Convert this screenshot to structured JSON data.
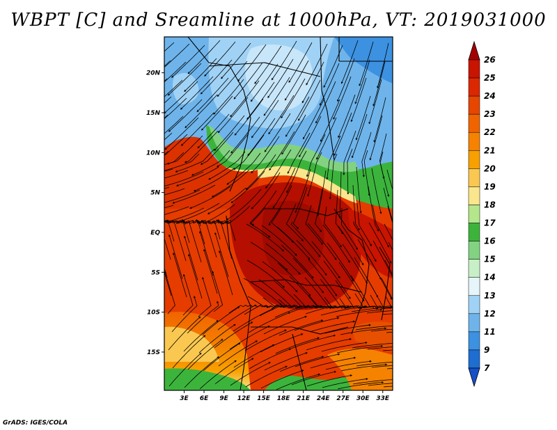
{
  "title": "WBPT [C] and Sreamline at 1000hPa, VT: 2019031000",
  "credit": "GrADS: IGES/COLA",
  "map": {
    "lat_labels": [
      "20N",
      "15N",
      "10N",
      "5N",
      "EQ",
      "5S",
      "10S",
      "15S"
    ],
    "lat_values": [
      20,
      15,
      10,
      5,
      0,
      -5,
      -10,
      -15
    ],
    "lon_labels": [
      "3E",
      "6E",
      "9E",
      "12E",
      "15E",
      "18E",
      "21E",
      "24E",
      "27E",
      "30E",
      "33E"
    ],
    "lon_values": [
      3,
      6,
      9,
      12,
      15,
      18,
      21,
      24,
      27,
      30,
      33
    ],
    "lat_range": [
      -19.8,
      24.5
    ],
    "lon_range": [
      0,
      34.5
    ]
  },
  "colorbar": {
    "levels": [
      "26",
      "25",
      "24",
      "23",
      "22",
      "21",
      "20",
      "19",
      "18",
      "17",
      "16",
      "15",
      "14",
      "13",
      "12",
      "11",
      "9",
      "7"
    ],
    "colors": [
      "#a50000",
      "#c81400",
      "#dc2800",
      "#e64600",
      "#f06400",
      "#f58200",
      "#f8a000",
      "#fac850",
      "#fae68c",
      "#b4e68c",
      "#3cb43c",
      "#82d282",
      "#c8f0c8",
      "#e6f5fa",
      "#a0d2f5",
      "#6eb4eb",
      "#3c91e1",
      "#1e6ed2",
      "#1450c8"
    ]
  }
}
